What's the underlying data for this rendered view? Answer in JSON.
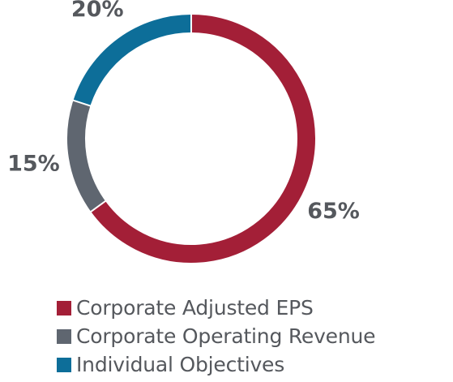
{
  "chart_data": {
    "type": "pie",
    "categories": [
      "Corporate Adjusted EPS",
      "Corporate Operating Revenue",
      "Individual Objectives"
    ],
    "values": [
      65,
      15,
      20
    ],
    "data_labels": [
      "65%",
      "15%",
      "20%"
    ],
    "colors": [
      "#a31f37",
      "#5f6670",
      "#0d6e99"
    ],
    "style": "donut",
    "legend_position": "bottom"
  }
}
